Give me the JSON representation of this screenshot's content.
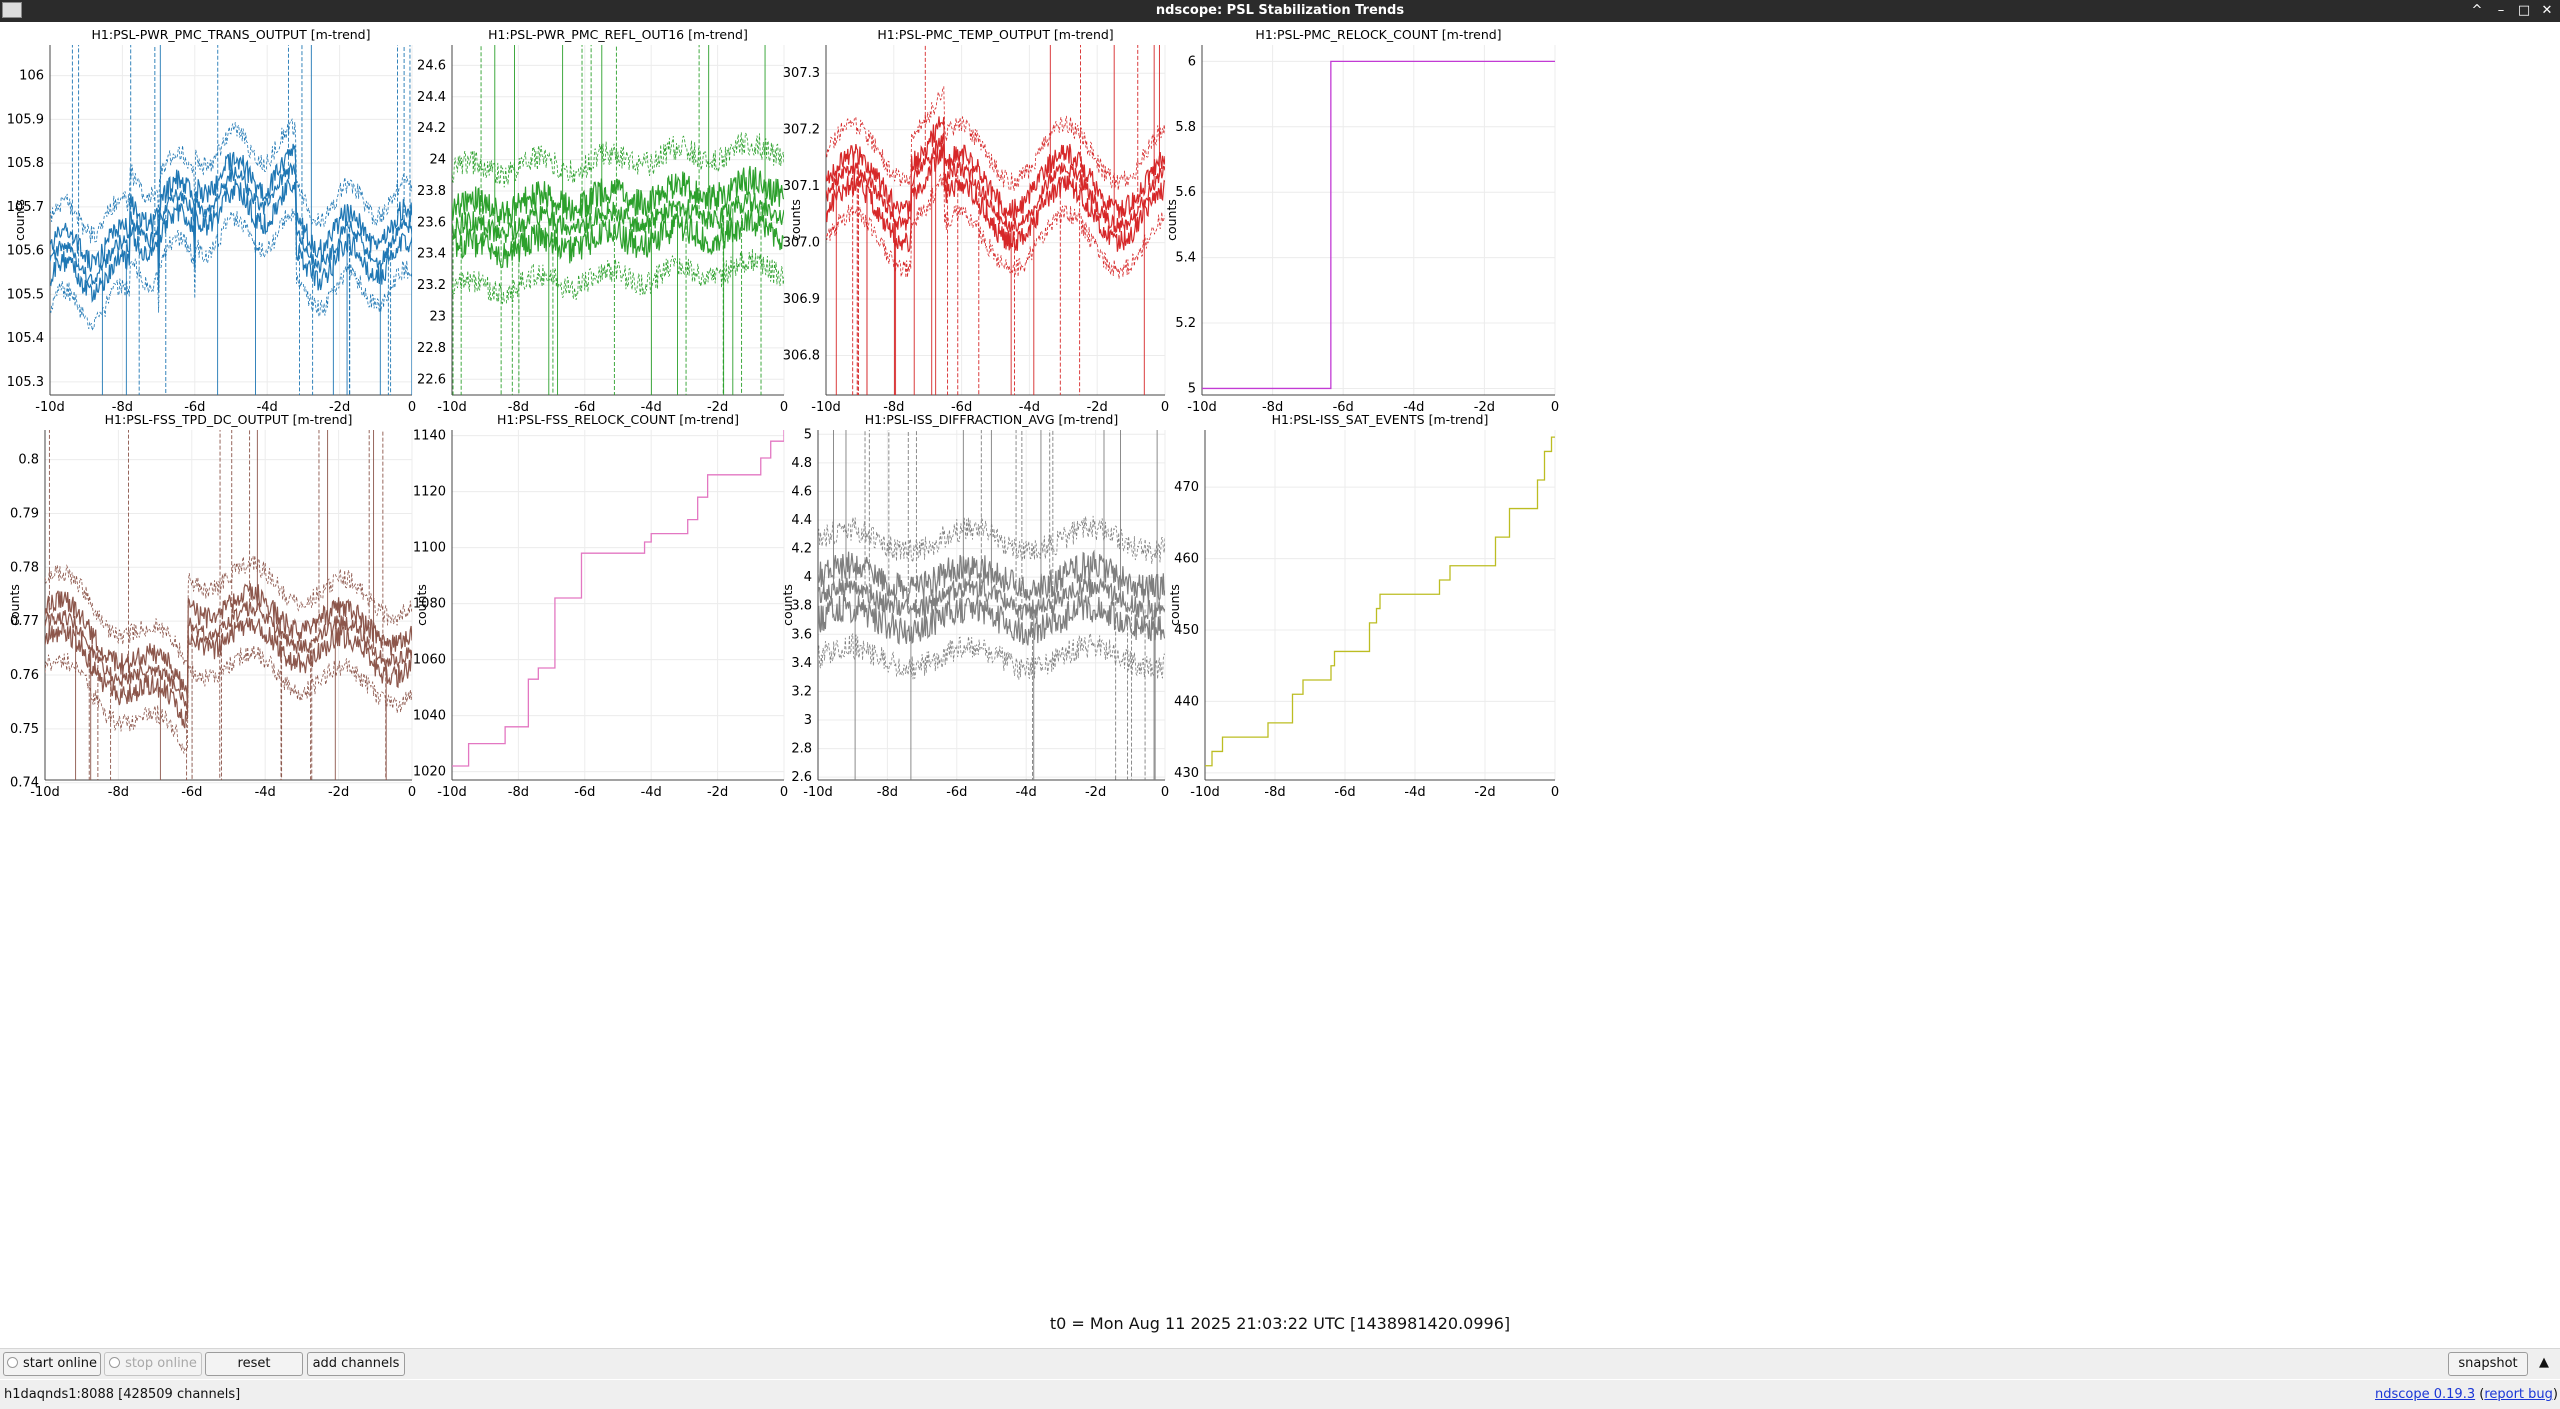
{
  "window": {
    "title": "ndscope: PSL Stabilization Trends",
    "controls": [
      "^",
      "–",
      "□",
      "✕"
    ]
  },
  "panels": [
    {
      "title": "H1:PSL-PWR_PMC_TRANS_OUTPUT [m-trend]",
      "ylabel": "counts",
      "color": "#1f77b4",
      "style": "noisy",
      "xticks": [
        "-10d",
        "-8d",
        "-6d",
        "-4d",
        "-2d",
        "0"
      ],
      "yticks": [
        "105.3",
        "105.4",
        "105.5",
        "105.6",
        "105.7",
        "105.8",
        "105.9",
        "106"
      ]
    },
    {
      "title": "H1:PSL-PWR_PMC_REFL_OUT16 [m-trend]",
      "ylabel": "",
      "color": "#2ca02c",
      "style": "noisy",
      "xticks": [
        "-10d",
        "-8d",
        "-6d",
        "-4d",
        "-2d",
        "0"
      ],
      "yticks": [
        "22.6",
        "22.8",
        "23",
        "23.2",
        "23.4",
        "23.6",
        "23.8",
        "24",
        "24.2",
        "24.4",
        "24.6"
      ]
    },
    {
      "title": "H1:PSL-PMC_TEMP_OUTPUT [m-trend]",
      "ylabel": "counts",
      "color": "#d62728",
      "style": "noisy",
      "xticks": [
        "-10d",
        "-8d",
        "-6d",
        "-4d",
        "-2d",
        "0"
      ],
      "yticks": [
        "306.8",
        "306.9",
        "307.0",
        "307.1",
        "307.2",
        "307.3"
      ]
    },
    {
      "title": "H1:PSL-PMC_RELOCK_COUNT [m-trend]",
      "ylabel": "counts",
      "color": "#c23bd4",
      "style": "steps",
      "xticks": [
        "-10d",
        "-8d",
        "-6d",
        "-4d",
        "-2d",
        "0"
      ],
      "yticks": [
        "5",
        "5.2",
        "5.4",
        "5.6",
        "5.8",
        "6"
      ]
    },
    {
      "title": "H1:PSL-FSS_TPD_DC_OUTPUT [m-trend]",
      "ylabel": "counts",
      "color": "#8c564b",
      "style": "noisy",
      "xticks": [
        "-10d",
        "-8d",
        "-6d",
        "-4d",
        "-2d",
        "0"
      ],
      "yticks": [
        "0.74",
        "0.75",
        "0.76",
        "0.77",
        "0.78",
        "0.79",
        "0.8"
      ]
    },
    {
      "title": "H1:PSL-FSS_RELOCK_COUNT [m-trend]",
      "ylabel": "counts",
      "color": "#e377c2",
      "style": "steps",
      "xticks": [
        "-10d",
        "-8d",
        "-6d",
        "-4d",
        "-2d",
        "0"
      ],
      "yticks": [
        "1020",
        "1040",
        "1060",
        "1080",
        "1100",
        "1120",
        "1140"
      ]
    },
    {
      "title": "H1:PSL-ISS_DIFFRACTION_AVG [m-trend]",
      "ylabel": "counts",
      "color": "#7f7f7f",
      "style": "noisy",
      "xticks": [
        "-10d",
        "-8d",
        "-6d",
        "-4d",
        "-2d",
        "0"
      ],
      "yticks": [
        "2.6",
        "2.8",
        "3",
        "3.2",
        "3.4",
        "3.6",
        "3.8",
        "4",
        "4.2",
        "4.4",
        "4.6",
        "4.8",
        "5"
      ]
    },
    {
      "title": "H1:PSL-ISS_SAT_EVENTS [m-trend]",
      "ylabel": "counts",
      "color": "#bcbd22",
      "style": "steps",
      "xticks": [
        "-10d",
        "-8d",
        "-6d",
        "-4d",
        "-2d",
        "0"
      ],
      "yticks": [
        "430",
        "440",
        "450",
        "460",
        "470"
      ]
    }
  ],
  "t0_label": "t0 = Mon Aug 11 2025 21:03:22 UTC [1438981420.0996]",
  "controls": {
    "start_online": "start online",
    "stop_online": "stop online",
    "reset": "reset",
    "add_channels": "add channels",
    "snapshot": "snapshot",
    "expand": "▲"
  },
  "status": {
    "server": "h1daqnds1:8088",
    "channels": "[428509 channels]",
    "app_link": "ndscope 0.19.3",
    "report_bug": "report bug"
  }
}
